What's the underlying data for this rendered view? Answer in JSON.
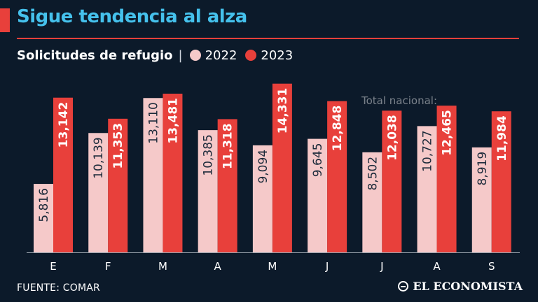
{
  "header": {
    "title": "Sigue tendencia al alza",
    "subtitle": "Solicitudes de refugio",
    "separator": "|"
  },
  "colors": {
    "background": "#0c1a2a",
    "title": "#45c1ec",
    "accent": "#e8403b",
    "series_2022": "#f5c9c9",
    "series_2023": "#e8403b",
    "label_2022": "#1b2a3a",
    "label_2023": "#ffffff",
    "axis": "#9aa3ad"
  },
  "chart_data": {
    "type": "bar",
    "title": "Solicitudes de refugio",
    "categories": [
      "E",
      "F",
      "M",
      "A",
      "M",
      "J",
      "J",
      "A",
      "S"
    ],
    "series": [
      {
        "name": "2022",
        "values": [
          5816,
          10139,
          13110,
          10385,
          9094,
          9645,
          8502,
          10727,
          8919
        ],
        "labels": [
          "5,816",
          "10,139",
          "13,110",
          "10,385",
          "9,094",
          "9,645",
          "8,502",
          "10,727",
          "8,919"
        ]
      },
      {
        "name": "2023",
        "values": [
          13142,
          11353,
          13481,
          11318,
          14331,
          12848,
          12038,
          12465,
          11984
        ],
        "labels": [
          "13,142",
          "11,353",
          "13,481",
          "11,318",
          "14,331",
          "12,848",
          "12,038",
          "12,465",
          "11,984"
        ]
      }
    ],
    "annotation": "Total nacional",
    "xlabel": "",
    "ylabel": "",
    "ylim": [
      0,
      15500
    ],
    "legend": "top-left",
    "grid": false
  },
  "footer": {
    "source": "FUENTE: COMAR",
    "logo": "EL ECONOMISTA"
  }
}
